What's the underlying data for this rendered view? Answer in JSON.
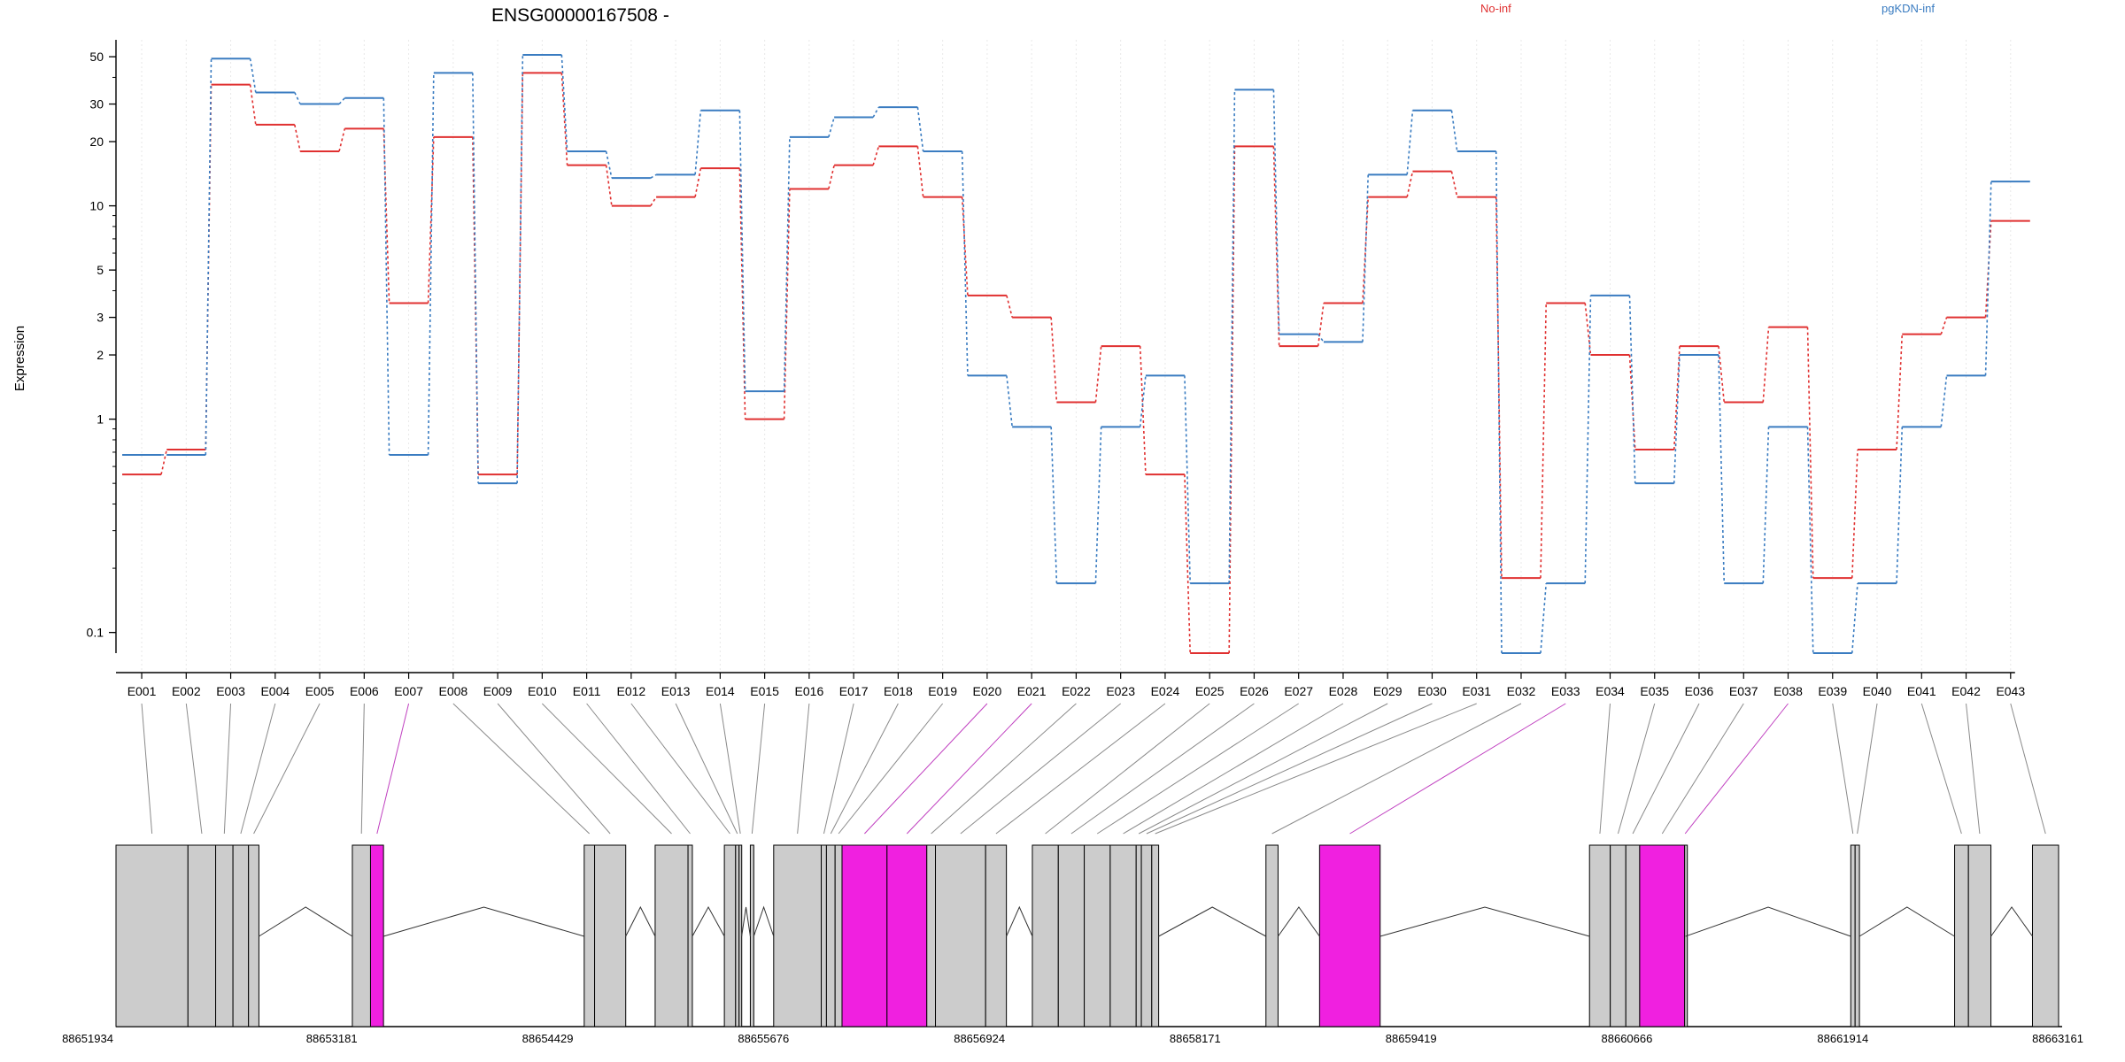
{
  "chart_data": {
    "type": "line",
    "title": "ENSG00000167508 -",
    "ylabel": "Expression",
    "xlabel": "",
    "y_scale": "log",
    "ylim": [
      0.08,
      60
    ],
    "y_ticks": [
      0.1,
      1,
      2,
      3,
      5,
      10,
      20,
      30,
      50
    ],
    "grid": "vertical dotted lines at each exon",
    "legend": [
      {
        "name": "No-inf",
        "color": "#e03030",
        "position": "top-center"
      },
      {
        "name": "pgKDN-inf",
        "color": "#3a7cc1",
        "position": "top-right"
      }
    ],
    "categories": [
      "E001",
      "E002",
      "E003",
      "E004",
      "E005",
      "E006",
      "E007",
      "E008",
      "E009",
      "E010",
      "E011",
      "E012",
      "E013",
      "E014",
      "E015",
      "E016",
      "E017",
      "E018",
      "E019",
      "E020",
      "E021",
      "E022",
      "E023",
      "E024",
      "E025",
      "E026",
      "E027",
      "E028",
      "E029",
      "E030",
      "E031",
      "E032",
      "E033",
      "E034",
      "E035",
      "E036",
      "E037",
      "E038",
      "E039",
      "E040",
      "E041",
      "E042",
      "E043"
    ],
    "series": [
      {
        "name": "No-inf",
        "color": "#e03030",
        "values": [
          0.55,
          0.72,
          37,
          24,
          18,
          23,
          3.5,
          21,
          0.55,
          42,
          15.5,
          10,
          11,
          15,
          1.0,
          12,
          15.5,
          19,
          11,
          3.8,
          3.0,
          1.2,
          2.2,
          0.55,
          0.08,
          19,
          2.2,
          3.5,
          11,
          14.5,
          11,
          0.18,
          3.5,
          2.0,
          0.72,
          2.2,
          1.2,
          2.7,
          0.18,
          0.72,
          2.5,
          3.0,
          8.5
        ]
      },
      {
        "name": "pgKDN-inf",
        "color": "#3a7cc1",
        "values": [
          0.68,
          0.68,
          49,
          34,
          30,
          32,
          0.68,
          42,
          0.5,
          51,
          18,
          13.5,
          14,
          28,
          1.35,
          21,
          26,
          29,
          18,
          1.6,
          0.92,
          0.17,
          0.92,
          1.6,
          0.17,
          35,
          2.5,
          2.3,
          14,
          28,
          18,
          0.08,
          0.17,
          3.8,
          0.5,
          2.0,
          0.17,
          0.92,
          0.08,
          0.17,
          0.92,
          1.6,
          13
        ]
      }
    ],
    "gene_model": {
      "coordinate_ticks": [
        "88651934",
        "88653181",
        "88654429",
        "88655676",
        "88656924",
        "88658171",
        "88659419",
        "88660666",
        "88661914",
        "88663161"
      ],
      "coordinate_range": [
        88651934,
        88663161
      ],
      "highlight_color": "#f020e0",
      "exon_color": "#cccccc",
      "exons": [
        {
          "exon": "E001",
          "start": 88651934,
          "end": 88652350,
          "highlight": false
        },
        {
          "exon": "E002",
          "start": 88652350,
          "end": 88652510,
          "highlight": false
        },
        {
          "exon": "E003",
          "start": 88652510,
          "end": 88652610,
          "highlight": false
        },
        {
          "exon": "E004",
          "start": 88652610,
          "end": 88652700,
          "highlight": false
        },
        {
          "exon": "E005",
          "start": 88652700,
          "end": 88652760,
          "highlight": false
        },
        {
          "exon": "E006",
          "start": 88653300,
          "end": 88653405,
          "highlight": false
        },
        {
          "exon": "E007",
          "start": 88653405,
          "end": 88653480,
          "highlight": true
        },
        {
          "exon": "E008",
          "start": 88654640,
          "end": 88654700,
          "highlight": false
        },
        {
          "exon": "E009",
          "start": 88654700,
          "end": 88654880,
          "highlight": false
        },
        {
          "exon": "E010",
          "start": 88655050,
          "end": 88655240,
          "highlight": false
        },
        {
          "exon": "E011",
          "start": 88655240,
          "end": 88655265,
          "highlight": false
        },
        {
          "exon": "E012",
          "start": 88655450,
          "end": 88655515,
          "highlight": false
        },
        {
          "exon": "E013",
          "start": 88655515,
          "end": 88655535,
          "highlight": false
        },
        {
          "exon": "E014",
          "start": 88655535,
          "end": 88655550,
          "highlight": false
        },
        {
          "exon": "E015",
          "start": 88655600,
          "end": 88655620,
          "highlight": false
        },
        {
          "exon": "E016",
          "start": 88655735,
          "end": 88656010,
          "highlight": false
        },
        {
          "exon": "E017",
          "start": 88656010,
          "end": 88656040,
          "highlight": false
        },
        {
          "exon": "E018",
          "start": 88656040,
          "end": 88656090,
          "highlight": false
        },
        {
          "exon": "E019",
          "start": 88656090,
          "end": 88656130,
          "highlight": false
        },
        {
          "exon": "E020",
          "start": 88656130,
          "end": 88656390,
          "highlight": true
        },
        {
          "exon": "E021",
          "start": 88656390,
          "end": 88656620,
          "highlight": true
        },
        {
          "exon": "E022",
          "start": 88656620,
          "end": 88656670,
          "highlight": false
        },
        {
          "exon": "E023",
          "start": 88656670,
          "end": 88656960,
          "highlight": false
        },
        {
          "exon": "E024",
          "start": 88656960,
          "end": 88657080,
          "highlight": false
        },
        {
          "exon": "E025",
          "start": 88657230,
          "end": 88657380,
          "highlight": false
        },
        {
          "exon": "E026",
          "start": 88657380,
          "end": 88657530,
          "highlight": false
        },
        {
          "exon": "E027",
          "start": 88657530,
          "end": 88657680,
          "highlight": false
        },
        {
          "exon": "E028",
          "start": 88657680,
          "end": 88657830,
          "highlight": false
        },
        {
          "exon": "E029",
          "start": 88657830,
          "end": 88657860,
          "highlight": false
        },
        {
          "exon": "E030",
          "start": 88657860,
          "end": 88657920,
          "highlight": false
        },
        {
          "exon": "E031",
          "start": 88657920,
          "end": 88657960,
          "highlight": false
        },
        {
          "exon": "E032",
          "start": 88658580,
          "end": 88658650,
          "highlight": false
        },
        {
          "exon": "E033",
          "start": 88658890,
          "end": 88659240,
          "highlight": true
        },
        {
          "exon": "E034",
          "start": 88660450,
          "end": 88660570,
          "highlight": false
        },
        {
          "exon": "E035",
          "start": 88660570,
          "end": 88660660,
          "highlight": false
        },
        {
          "exon": "E036",
          "start": 88660660,
          "end": 88660740,
          "highlight": false
        },
        {
          "exon": "E037",
          "start": 88660740,
          "end": 88661000,
          "highlight": true
        },
        {
          "exon": "E038",
          "start": 88661000,
          "end": 88661005,
          "highlight": false
        },
        {
          "exon": "E039",
          "start": 88661960,
          "end": 88661985,
          "highlight": false
        },
        {
          "exon": "E040",
          "start": 88661985,
          "end": 88662010,
          "highlight": false
        },
        {
          "exon": "E041",
          "start": 88662560,
          "end": 88662640,
          "highlight": false
        },
        {
          "exon": "E042",
          "start": 88662640,
          "end": 88662770,
          "highlight": false
        },
        {
          "exon": "E043",
          "start": 88663010,
          "end": 88663161,
          "highlight": false
        }
      ],
      "connector_highlight": [
        "E007",
        "E020",
        "E021",
        "E033",
        "E038"
      ]
    }
  }
}
